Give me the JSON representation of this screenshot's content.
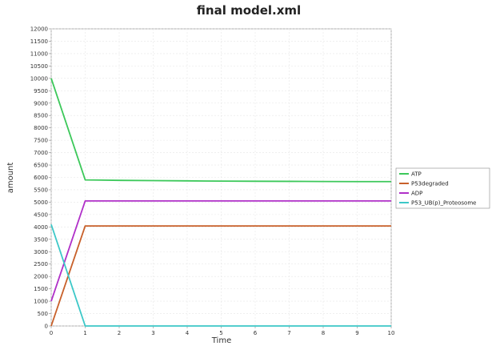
{
  "chart_data": {
    "type": "line",
    "title": "final model.xml",
    "xlabel": "Time",
    "ylabel": "amount",
    "xlim": [
      0,
      10
    ],
    "ylim": [
      0,
      12000
    ],
    "x_ticks": [
      0,
      1,
      2,
      3,
      4,
      5,
      6,
      7,
      8,
      9,
      10
    ],
    "y_ticks": [
      0,
      500,
      1000,
      1500,
      2000,
      2500,
      3000,
      3500,
      4000,
      4500,
      5000,
      5500,
      6000,
      6500,
      7000,
      7500,
      8000,
      8500,
      9000,
      9500,
      10000,
      10500,
      11000,
      11500,
      12000
    ],
    "grid": true,
    "legend_position": "right",
    "x": [
      0,
      1,
      2,
      3,
      4,
      5,
      6,
      7,
      8,
      9,
      10
    ],
    "series": [
      {
        "name": "ATP",
        "color": "#3cc85a",
        "values": [
          10000,
          5900,
          5880,
          5870,
          5860,
          5850,
          5845,
          5840,
          5835,
          5830,
          5830
        ]
      },
      {
        "name": "P53degraded",
        "color": "#c8602a",
        "values": [
          0,
          4040,
          4040,
          4040,
          4040,
          4040,
          4040,
          4040,
          4040,
          4040,
          4040
        ]
      },
      {
        "name": "ADP",
        "color": "#b030c8",
        "values": [
          1000,
          5050,
          5050,
          5050,
          5050,
          5050,
          5050,
          5050,
          5050,
          5050,
          5050
        ]
      },
      {
        "name": "P53_UB(p)_Proteosome",
        "color": "#3cc8c8",
        "values": [
          4100,
          0,
          0,
          0,
          0,
          0,
          0,
          0,
          0,
          0,
          0
        ]
      }
    ]
  }
}
